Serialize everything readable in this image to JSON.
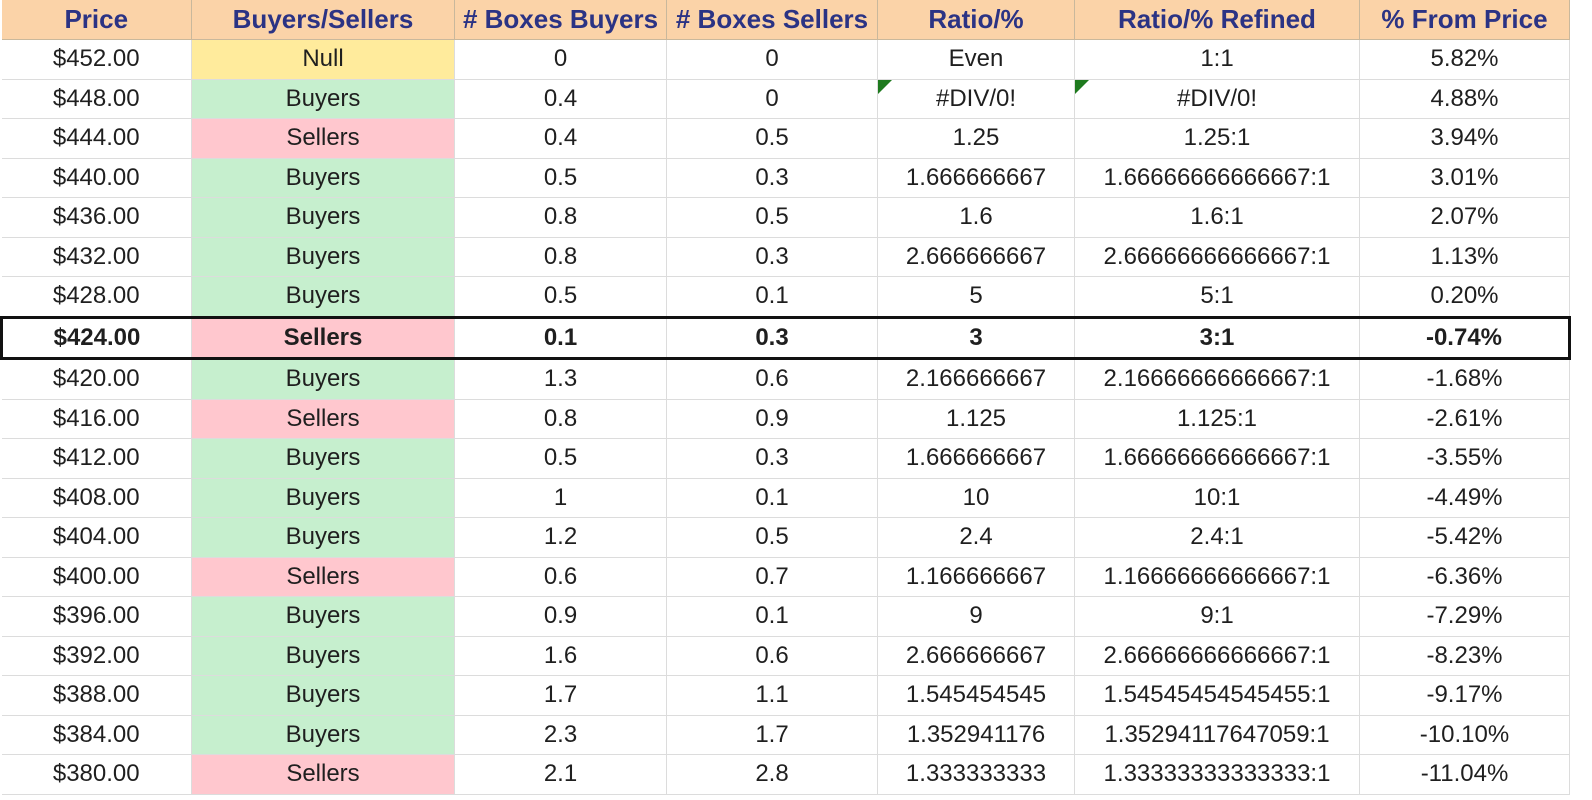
{
  "headers": {
    "price": "Price",
    "buyers_sellers": "Buyers/Sellers",
    "boxes_buyers": "# Boxes Buyers",
    "boxes_sellers": "# Boxes Sellers",
    "ratio": "Ratio/%",
    "ratio_refined": "Ratio/% Refined",
    "from_price": "% From Price"
  },
  "status_colors": {
    "buyers": {
      "bg": "#c6efce",
      "fg": "#0d6b14"
    },
    "sellers": {
      "bg": "#ffc7ce",
      "fg": "#9c0006"
    },
    "null": {
      "bg": "#ffeb9c",
      "fg": "#9c6500"
    },
    "header_bg": "#fbd3a8",
    "header_fg": "#2b3384"
  },
  "current_price_row": 7,
  "rows": [
    {
      "price": "$452.00",
      "side": "Null",
      "boxes_buyers": "0",
      "boxes_sellers": "0",
      "ratio": "Even",
      "ratio_refined": "1:1",
      "from_price": "5.82%"
    },
    {
      "price": "$448.00",
      "side": "Buyers",
      "boxes_buyers": "0.4",
      "boxes_sellers": "0",
      "ratio": "#DIV/0!",
      "ratio_refined": "#DIV/0!",
      "from_price": "4.88%"
    },
    {
      "price": "$444.00",
      "side": "Sellers",
      "boxes_buyers": "0.4",
      "boxes_sellers": "0.5",
      "ratio": "1.25",
      "ratio_refined": "1.25:1",
      "from_price": "3.94%"
    },
    {
      "price": "$440.00",
      "side": "Buyers",
      "boxes_buyers": "0.5",
      "boxes_sellers": "0.3",
      "ratio": "1.666666667",
      "ratio_refined": "1.66666666666667:1",
      "from_price": "3.01%"
    },
    {
      "price": "$436.00",
      "side": "Buyers",
      "boxes_buyers": "0.8",
      "boxes_sellers": "0.5",
      "ratio": "1.6",
      "ratio_refined": "1.6:1",
      "from_price": "2.07%"
    },
    {
      "price": "$432.00",
      "side": "Buyers",
      "boxes_buyers": "0.8",
      "boxes_sellers": "0.3",
      "ratio": "2.666666667",
      "ratio_refined": "2.66666666666667:1",
      "from_price": "1.13%"
    },
    {
      "price": "$428.00",
      "side": "Buyers",
      "boxes_buyers": "0.5",
      "boxes_sellers": "0.1",
      "ratio": "5",
      "ratio_refined": "5:1",
      "from_price": "0.20%"
    },
    {
      "price": "$424.00",
      "side": "Sellers",
      "boxes_buyers": "0.1",
      "boxes_sellers": "0.3",
      "ratio": "3",
      "ratio_refined": "3:1",
      "from_price": "-0.74%"
    },
    {
      "price": "$420.00",
      "side": "Buyers",
      "boxes_buyers": "1.3",
      "boxes_sellers": "0.6",
      "ratio": "2.166666667",
      "ratio_refined": "2.16666666666667:1",
      "from_price": "-1.68%"
    },
    {
      "price": "$416.00",
      "side": "Sellers",
      "boxes_buyers": "0.8",
      "boxes_sellers": "0.9",
      "ratio": "1.125",
      "ratio_refined": "1.125:1",
      "from_price": "-2.61%"
    },
    {
      "price": "$412.00",
      "side": "Buyers",
      "boxes_buyers": "0.5",
      "boxes_sellers": "0.3",
      "ratio": "1.666666667",
      "ratio_refined": "1.66666666666667:1",
      "from_price": "-3.55%"
    },
    {
      "price": "$408.00",
      "side": "Buyers",
      "boxes_buyers": "1",
      "boxes_sellers": "0.1",
      "ratio": "10",
      "ratio_refined": "10:1",
      "from_price": "-4.49%"
    },
    {
      "price": "$404.00",
      "side": "Buyers",
      "boxes_buyers": "1.2",
      "boxes_sellers": "0.5",
      "ratio": "2.4",
      "ratio_refined": "2.4:1",
      "from_price": "-5.42%"
    },
    {
      "price": "$400.00",
      "side": "Sellers",
      "boxes_buyers": "0.6",
      "boxes_sellers": "0.7",
      "ratio": "1.166666667",
      "ratio_refined": "1.16666666666667:1",
      "from_price": "-6.36%"
    },
    {
      "price": "$396.00",
      "side": "Buyers",
      "boxes_buyers": "0.9",
      "boxes_sellers": "0.1",
      "ratio": "9",
      "ratio_refined": "9:1",
      "from_price": "-7.29%"
    },
    {
      "price": "$392.00",
      "side": "Buyers",
      "boxes_buyers": "1.6",
      "boxes_sellers": "0.6",
      "ratio": "2.666666667",
      "ratio_refined": "2.66666666666667:1",
      "from_price": "-8.23%"
    },
    {
      "price": "$388.00",
      "side": "Buyers",
      "boxes_buyers": "1.7",
      "boxes_sellers": "1.1",
      "ratio": "1.545454545",
      "ratio_refined": "1.54545454545455:1",
      "from_price": "-9.17%"
    },
    {
      "price": "$384.00",
      "side": "Buyers",
      "boxes_buyers": "2.3",
      "boxes_sellers": "1.7",
      "ratio": "1.352941176",
      "ratio_refined": "1.35294117647059:1",
      "from_price": "-10.10%"
    },
    {
      "price": "$380.00",
      "side": "Sellers",
      "boxes_buyers": "2.1",
      "boxes_sellers": "2.8",
      "ratio": "1.333333333",
      "ratio_refined": "1.33333333333333:1",
      "from_price": "-11.04%"
    }
  ]
}
